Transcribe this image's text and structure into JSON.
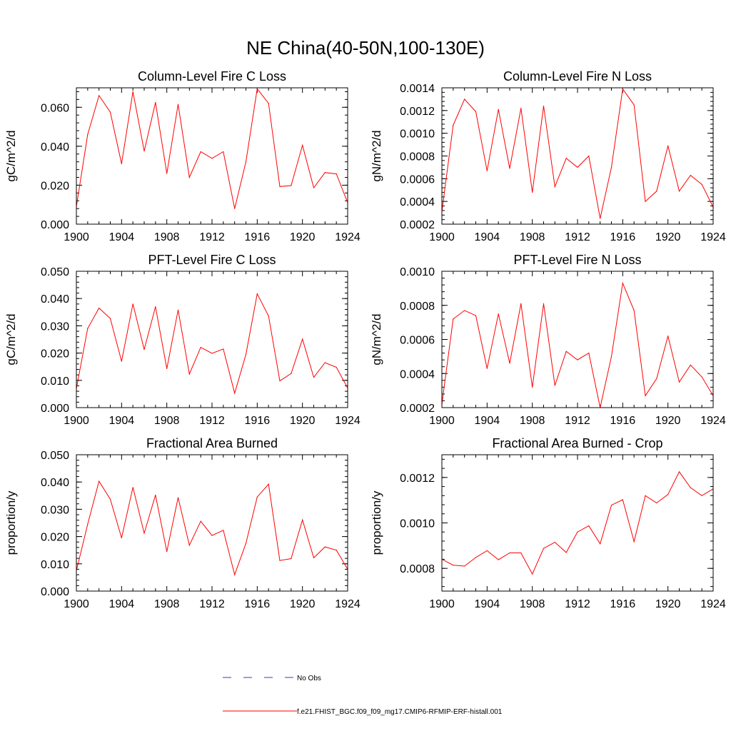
{
  "title": "NE China(40-50N,100-130E)",
  "legend": [
    {
      "label": "No Obs",
      "color": "#3b3bbf",
      "dash": true
    },
    {
      "label": "f.e21.FHIST_BGC.f09_f09_mg17.CMIP6-RFMIP-ERF-histall.001",
      "color": "#ff0000",
      "dash": false
    }
  ],
  "line_color": "#ff0000",
  "chart_data": [
    {
      "type": "line",
      "title": "Column-Level Fire C Loss",
      "ylabel": "gC/m^2/d",
      "xlim": [
        1900,
        1924
      ],
      "ylim": [
        0,
        0.07
      ],
      "xticks": [
        1900,
        1904,
        1908,
        1912,
        1916,
        1920,
        1924
      ],
      "yticks": [
        0,
        0.02,
        0.04,
        0.06
      ],
      "ytick_labels": [
        "0.000",
        "0.020",
        "0.040",
        "0.060"
      ],
      "x": [
        1900,
        1901,
        1902,
        1903,
        1904,
        1905,
        1906,
        1907,
        1908,
        1909,
        1910,
        1911,
        1912,
        1913,
        1914,
        1915,
        1916,
        1917,
        1918,
        1919,
        1920,
        1921,
        1922,
        1923,
        1924
      ],
      "values": [
        0.009,
        0.046,
        0.066,
        0.0575,
        0.031,
        0.068,
        0.0375,
        0.0625,
        0.026,
        0.0615,
        0.024,
        0.0372,
        0.0338,
        0.0372,
        0.008,
        0.032,
        0.0695,
        0.062,
        0.0193,
        0.0198,
        0.0405,
        0.0187,
        0.0265,
        0.0258,
        0.011
      ]
    },
    {
      "type": "line",
      "title": "Column-Level Fire N Loss",
      "ylabel": "gN/m^2/d",
      "xlim": [
        1900,
        1924
      ],
      "ylim": [
        0.0002,
        0.0014
      ],
      "xticks": [
        1900,
        1904,
        1908,
        1912,
        1916,
        1920,
        1924
      ],
      "yticks": [
        0.0002,
        0.0004,
        0.0006,
        0.0008,
        0.001,
        0.0012,
        0.0014
      ],
      "ytick_labels": [
        "0.0002",
        "0.0004",
        "0.0006",
        "0.0008",
        "0.0010",
        "0.0012",
        "0.0014"
      ],
      "x": [
        1900,
        1901,
        1902,
        1903,
        1904,
        1905,
        1906,
        1907,
        1908,
        1909,
        1910,
        1911,
        1912,
        1913,
        1914,
        1915,
        1916,
        1917,
        1918,
        1919,
        1920,
        1921,
        1922,
        1923,
        1924
      ],
      "values": [
        0.00031,
        0.00107,
        0.0013,
        0.00119,
        0.00067,
        0.00121,
        0.00069,
        0.00122,
        0.00048,
        0.00124,
        0.00053,
        0.00078,
        0.0007,
        0.0008,
        0.00025,
        0.0007,
        0.00139,
        0.00125,
        0.0004,
        0.00049,
        0.00089,
        0.00049,
        0.00063,
        0.00055,
        0.00035
      ]
    },
    {
      "type": "line",
      "title": "PFT-Level Fire C Loss",
      "ylabel": "gC/m^2/d",
      "xlim": [
        1900,
        1924
      ],
      "ylim": [
        0,
        0.05
      ],
      "xticks": [
        1900,
        1904,
        1908,
        1912,
        1916,
        1920,
        1924
      ],
      "yticks": [
        0,
        0.01,
        0.02,
        0.03,
        0.04,
        0.05
      ],
      "ytick_labels": [
        "0.000",
        "0.010",
        "0.020",
        "0.030",
        "0.040",
        "0.050"
      ],
      "x": [
        1900,
        1901,
        1902,
        1903,
        1904,
        1905,
        1906,
        1907,
        1908,
        1909,
        1910,
        1911,
        1912,
        1913,
        1914,
        1915,
        1916,
        1917,
        1918,
        1919,
        1920,
        1921,
        1922,
        1923,
        1924
      ],
      "values": [
        0.007,
        0.029,
        0.0365,
        0.0327,
        0.017,
        0.038,
        0.0213,
        0.037,
        0.0143,
        0.0358,
        0.0123,
        0.0221,
        0.0199,
        0.0215,
        0.0053,
        0.0195,
        0.0417,
        0.0336,
        0.0098,
        0.0125,
        0.0251,
        0.0111,
        0.0165,
        0.0148,
        0.0072
      ]
    },
    {
      "type": "line",
      "title": "PFT-Level Fire N Loss",
      "ylabel": "gN/m^2/d",
      "xlim": [
        1900,
        1924
      ],
      "ylim": [
        0.0002,
        0.001
      ],
      "xticks": [
        1900,
        1904,
        1908,
        1912,
        1916,
        1920,
        1924
      ],
      "yticks": [
        0.0002,
        0.0004,
        0.0006,
        0.0008,
        0.001
      ],
      "ytick_labels": [
        "0.0002",
        "0.0004",
        "0.0006",
        "0.0008",
        "0.0010"
      ],
      "x": [
        1900,
        1901,
        1902,
        1903,
        1904,
        1905,
        1906,
        1907,
        1908,
        1909,
        1910,
        1911,
        1912,
        1913,
        1914,
        1915,
        1916,
        1917,
        1918,
        1919,
        1920,
        1921,
        1922,
        1923,
        1924
      ],
      "values": [
        0.00022,
        0.00072,
        0.00077,
        0.00074,
        0.00043,
        0.00075,
        0.00046,
        0.00081,
        0.00032,
        0.00081,
        0.00033,
        0.00053,
        0.00048,
        0.00052,
        0.0002,
        0.0005,
        0.00093,
        0.00077,
        0.00027,
        0.00037,
        0.00062,
        0.00035,
        0.00045,
        0.00038,
        0.00027
      ]
    },
    {
      "type": "line",
      "title": "Fractional Area Burned",
      "ylabel": "proportion/y",
      "xlim": [
        1900,
        1924
      ],
      "ylim": [
        0,
        0.05
      ],
      "xticks": [
        1900,
        1904,
        1908,
        1912,
        1916,
        1920,
        1924
      ],
      "yticks": [
        0,
        0.01,
        0.02,
        0.03,
        0.04,
        0.05
      ],
      "ytick_labels": [
        "0.000",
        "0.010",
        "0.020",
        "0.030",
        "0.040",
        "0.050"
      ],
      "x": [
        1900,
        1901,
        1902,
        1903,
        1904,
        1905,
        1906,
        1907,
        1908,
        1909,
        1910,
        1911,
        1912,
        1913,
        1914,
        1915,
        1916,
        1917,
        1918,
        1919,
        1920,
        1921,
        1922,
        1923,
        1924
      ],
      "values": [
        0.0075,
        0.0245,
        0.0403,
        0.0337,
        0.0195,
        0.038,
        0.0212,
        0.0352,
        0.0145,
        0.0343,
        0.0168,
        0.0256,
        0.0204,
        0.0223,
        0.006,
        0.0175,
        0.0345,
        0.0392,
        0.0112,
        0.0119,
        0.0261,
        0.0122,
        0.0162,
        0.015,
        0.008
      ]
    },
    {
      "type": "line",
      "title": "Fractional Area Burned - Crop",
      "ylabel": "proportion/y",
      "xlim": [
        1900,
        1924
      ],
      "ylim": [
        0.0007,
        0.0013
      ],
      "xticks": [
        1900,
        1904,
        1908,
        1912,
        1916,
        1920,
        1924
      ],
      "yticks": [
        0.0008,
        0.001,
        0.0012
      ],
      "ytick_labels": [
        "0.0008",
        "0.0010",
        "0.0012"
      ],
      "x": [
        1900,
        1901,
        1902,
        1903,
        1904,
        1905,
        1906,
        1907,
        1908,
        1909,
        1910,
        1911,
        1912,
        1913,
        1914,
        1915,
        1916,
        1917,
        1918,
        1919,
        1920,
        1921,
        1922,
        1923,
        1924
      ],
      "values": [
        0.00084,
        0.000814,
        0.00081,
        0.000848,
        0.000878,
        0.000838,
        0.000868,
        0.000868,
        0.000775,
        0.000888,
        0.000915,
        0.00087,
        0.00096,
        0.000987,
        0.000908,
        0.001078,
        0.001102,
        0.000918,
        0.00112,
        0.001088,
        0.001125,
        0.001225,
        0.001155,
        0.00112,
        0.00115
      ]
    }
  ]
}
